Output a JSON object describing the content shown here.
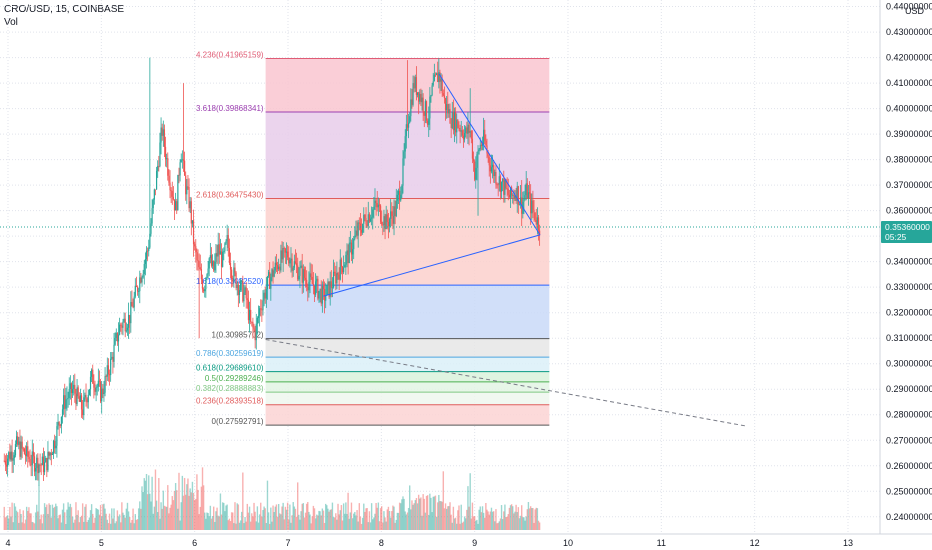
{
  "header": {
    "symbol": "CRO/USD, 15, COINBASE",
    "vol_label": "Vol"
  },
  "chart_data": {
    "type": "candlestick",
    "currency": "USD",
    "y_ticks": [
      "0.44000000",
      "0.43000000",
      "0.42000000",
      "0.41000000",
      "0.40000000",
      "0.39000000",
      "0.38000000",
      "0.37000000",
      "0.36000000",
      "0.35000000",
      "0.34000000",
      "0.33000000",
      "0.32000000",
      "0.31000000",
      "0.30000000",
      "0.29000000",
      "0.28000000",
      "0.27000000",
      "0.26000000",
      "0.25000000",
      "0.24000000"
    ],
    "y_tick_values": [
      0.44,
      0.43,
      0.42,
      0.41,
      0.4,
      0.39,
      0.38,
      0.37,
      0.36,
      0.35,
      0.34,
      0.33,
      0.32,
      0.31,
      0.3,
      0.29,
      0.28,
      0.27,
      0.26,
      0.25,
      0.24
    ],
    "ylim": [
      0.236,
      0.441
    ],
    "x_ticks": [
      "4",
      "5",
      "6",
      "7",
      "8",
      "9",
      "10",
      "11",
      "12",
      "13"
    ],
    "x_tick_days": [
      4,
      5,
      6,
      7,
      8,
      9,
      10,
      11,
      12,
      13
    ],
    "xlim": [
      3.96,
      13.2
    ],
    "last_price": {
      "value": 0.3536,
      "label": "0.35360000",
      "timer": "05:25"
    },
    "price_path": [
      [
        3.96,
        0.262
      ],
      [
        4.1,
        0.268
      ],
      [
        4.25,
        0.262
      ],
      [
        4.4,
        0.26
      ],
      [
        4.5,
        0.27
      ],
      [
        4.6,
        0.285
      ],
      [
        4.7,
        0.29
      ],
      [
        4.8,
        0.282
      ],
      [
        4.9,
        0.295
      ],
      [
        5.0,
        0.288
      ],
      [
        5.1,
        0.3
      ],
      [
        5.2,
        0.315
      ],
      [
        5.3,
        0.318
      ],
      [
        5.4,
        0.332
      ],
      [
        5.5,
        0.345
      ],
      [
        5.58,
        0.37
      ],
      [
        5.65,
        0.392
      ],
      [
        5.72,
        0.375
      ],
      [
        5.8,
        0.36
      ],
      [
        5.85,
        0.385
      ],
      [
        5.9,
        0.37
      ],
      [
        5.95,
        0.362
      ],
      [
        6.0,
        0.344
      ],
      [
        6.05,
        0.336
      ],
      [
        6.1,
        0.33
      ],
      [
        6.15,
        0.342
      ],
      [
        6.2,
        0.336
      ],
      [
        6.25,
        0.345
      ],
      [
        6.3,
        0.34
      ],
      [
        6.35,
        0.348
      ],
      [
        6.4,
        0.336
      ],
      [
        6.48,
        0.33
      ],
      [
        6.55,
        0.326
      ],
      [
        6.6,
        0.315
      ],
      [
        6.65,
        0.312
      ],
      [
        6.7,
        0.322
      ],
      [
        6.8,
        0.333
      ],
      [
        6.9,
        0.34
      ],
      [
        7.0,
        0.343
      ],
      [
        7.1,
        0.337
      ],
      [
        7.2,
        0.333
      ],
      [
        7.3,
        0.33
      ],
      [
        7.38,
        0.326
      ],
      [
        7.45,
        0.33
      ],
      [
        7.55,
        0.337
      ],
      [
        7.65,
        0.343
      ],
      [
        7.75,
        0.352
      ],
      [
        7.85,
        0.358
      ],
      [
        7.95,
        0.362
      ],
      [
        8.05,
        0.355
      ],
      [
        8.15,
        0.36
      ],
      [
        8.22,
        0.372
      ],
      [
        8.28,
        0.395
      ],
      [
        8.35,
        0.41
      ],
      [
        8.42,
        0.405
      ],
      [
        8.5,
        0.396
      ],
      [
        8.55,
        0.408
      ],
      [
        8.62,
        0.414
      ],
      [
        8.68,
        0.402
      ],
      [
        8.75,
        0.396
      ],
      [
        8.82,
        0.394
      ],
      [
        8.9,
        0.39
      ],
      [
        8.95,
        0.392
      ],
      [
        9.0,
        0.375
      ],
      [
        9.05,
        0.385
      ],
      [
        9.1,
        0.388
      ],
      [
        9.15,
        0.38
      ],
      [
        9.22,
        0.374
      ],
      [
        9.3,
        0.37
      ],
      [
        9.38,
        0.365
      ],
      [
        9.45,
        0.368
      ],
      [
        9.5,
        0.362
      ],
      [
        9.56,
        0.368
      ],
      [
        9.6,
        0.362
      ],
      [
        9.65,
        0.358
      ],
      [
        9.7,
        0.3536
      ]
    ],
    "volume_x_range": [
      3.96,
      9.72
    ],
    "fibonacci": [
      {
        "ratio": 4.236,
        "label": "4.236(0.41965159)",
        "price": 0.41965159,
        "color": "#e05c75"
      },
      {
        "ratio": 3.618,
        "label": "3.618(0.39868341)",
        "price": 0.39868341,
        "color": "#9c3fb0"
      },
      {
        "ratio": 2.618,
        "label": "2.618(0.36475430)",
        "price": 0.3647543,
        "color": "#e05c5c"
      },
      {
        "ratio": 1.618,
        "label": "1.618(0.33082520)",
        "price": 0.3308252,
        "color": "#2962ff"
      },
      {
        "ratio": 1,
        "label": "1(0.30985702)",
        "price": 0.30985702,
        "color": "#555555"
      },
      {
        "ratio": 0.786,
        "label": "0.786(0.30259619)",
        "price": 0.30259619,
        "color": "#4da6e0"
      },
      {
        "ratio": 0.618,
        "label": "0.618(0.29689610)",
        "price": 0.2968961,
        "color": "#089981"
      },
      {
        "ratio": 0.5,
        "label": "0.5(0.29289246)",
        "price": 0.29289246,
        "color": "#4caf50"
      },
      {
        "ratio": 0.382,
        "label": "0.382(0.28888883)",
        "price": 0.28888883,
        "color": "#81c784"
      },
      {
        "ratio": 0.236,
        "label": "0.236(0.28393518)",
        "price": 0.28393518,
        "color": "#e05c5c"
      },
      {
        "ratio": 0,
        "label": "0(0.27592791)",
        "price": 0.27592791,
        "color": "#555555"
      }
    ],
    "fib_band_fills": [
      "#f9c6d0",
      "#e8ccea",
      "#fbd0cc",
      "#c9d9f8",
      "#e6e6e6",
      "#daf0f8",
      "#d9f2dc",
      "#e3f4e4",
      "#eef7ee",
      "#fcd4d4"
    ],
    "fib_x_range": [
      6.76,
      9.8
    ],
    "trend_lines": [
      {
        "points": [
          [
            8.62,
            0.4135
          ],
          [
            9.7,
            0.3505
          ]
        ],
        "color": "#2962ff",
        "dashed": false
      },
      {
        "points": [
          [
            7.38,
            0.3265
          ],
          [
            9.7,
            0.3505
          ]
        ],
        "color": "#2962ff",
        "dashed": false
      },
      {
        "points": [
          [
            6.76,
            0.3095
          ],
          [
            11.92,
            0.2755
          ]
        ],
        "color": "#787b86",
        "dashed": true
      }
    ],
    "colors": {
      "up": "#26a69a",
      "down": "#ef5350",
      "price_line": "#26a69a",
      "grid": "#e0e3eb",
      "axis_text": "#131722"
    },
    "grid": true
  }
}
